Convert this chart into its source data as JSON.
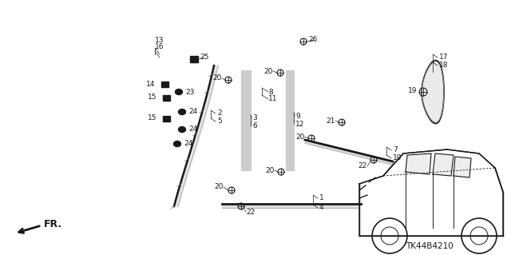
{
  "bg_color": "#ffffff",
  "diagram_code": "TK44B4210",
  "dark": "#1a1a1a",
  "gray": "#555555",
  "lgray": "#888888"
}
